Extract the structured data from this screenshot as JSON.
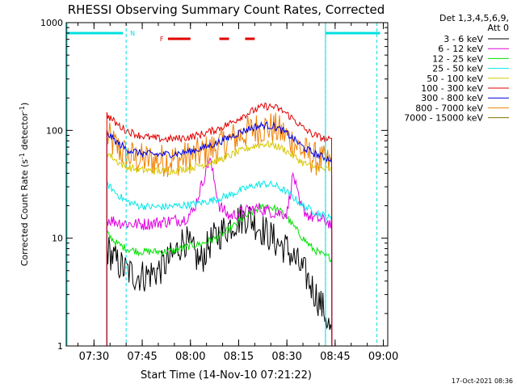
{
  "chart_data": {
    "type": "line",
    "title": "RHESSI Observing Summary Count Rates, Corrected",
    "xlabel": "Start Time (14-Nov-10 07:21:22)",
    "ylabel_main": "Corrected Count Rate (s",
    "ylabel_sup1": "-1",
    "ylabel_mid": " detector",
    "ylabel_sup2": "-1",
    "ylabel_end": ")",
    "yscale": "log",
    "ylim": [
      1,
      1000
    ],
    "xlim": [
      "07:21:22",
      "09:01:22"
    ],
    "x_ticks": [
      "07:30",
      "07:45",
      "08:00",
      "08:15",
      "08:30",
      "08:45",
      "09:00"
    ],
    "y_ticks": [
      "1",
      "10",
      "100",
      "1000"
    ],
    "legend_header": [
      "Det 1,3,4,5,6,9,",
      "Att 0"
    ],
    "footer": "17-Oct-2021 08:36",
    "flags": {
      "night_label": "N",
      "flare_label": "F",
      "night_color": "#00e0e0",
      "flare_color": "#e00000",
      "night_lines": [
        "07:40",
        "08:42",
        "08:58"
      ],
      "night_bars": [
        [
          "07:21:22",
          "07:39"
        ],
        [
          "08:42",
          "08:59"
        ]
      ],
      "flare_segments": [
        [
          "07:53",
          "08:00"
        ],
        [
          "08:09",
          "08:12"
        ],
        [
          "08:17",
          "08:20"
        ]
      ]
    },
    "data_start": "07:34",
    "data_end": "08:44",
    "series": [
      {
        "name": "3 - 6 keV",
        "color": "#000000",
        "x": [
          "07:34",
          "07:37",
          "07:40",
          "07:43",
          "07:46",
          "07:50",
          "07:55",
          "07:58",
          "08:00",
          "08:03",
          "08:06",
          "08:09",
          "08:12",
          "08:15",
          "08:18",
          "08:21",
          "08:24",
          "08:27",
          "08:30",
          "08:33",
          "08:36",
          "08:39",
          "08:42",
          "08:44"
        ],
        "y": [
          8,
          6,
          5,
          4.5,
          4.5,
          5,
          7,
          10,
          8,
          6,
          9,
          11,
          13,
          15,
          16,
          13,
          11,
          9,
          8,
          6,
          4.5,
          3,
          2,
          1.2
        ]
      },
      {
        "name": "6 - 12 keV",
        "color": "#e000e0",
        "x": [
          "07:34",
          "07:38",
          "07:42",
          "07:46",
          "07:50",
          "07:54",
          "07:58",
          "08:01",
          "08:03",
          "08:06",
          "08:09",
          "08:12",
          "08:15",
          "08:18",
          "08:21",
          "08:24",
          "08:27",
          "08:30",
          "08:32",
          "08:34",
          "08:37",
          "08:40",
          "08:43",
          "08:44"
        ],
        "y": [
          15,
          14,
          13.5,
          13.5,
          14,
          14.5,
          15,
          18,
          28,
          55,
          20,
          16,
          17,
          18,
          19,
          18,
          17,
          17,
          40,
          20,
          16,
          15,
          14,
          13
        ]
      },
      {
        "name": "12 - 25 keV",
        "color": "#00e000",
        "x": [
          "07:34",
          "07:37",
          "07:40",
          "07:44",
          "07:48",
          "07:52",
          "07:56",
          "08:00",
          "08:04",
          "08:08",
          "08:12",
          "08:16",
          "08:20",
          "08:23",
          "08:26",
          "08:29",
          "08:32",
          "08:35",
          "08:38",
          "08:41",
          "08:44"
        ],
        "y": [
          11,
          9,
          8,
          7.5,
          7.5,
          7.5,
          7.8,
          8.5,
          9,
          10,
          12,
          15,
          18,
          20,
          19,
          17,
          13,
          10,
          8,
          7,
          6.5
        ]
      },
      {
        "name": "25 - 50 keV",
        "color": "#00e8e8",
        "x": [
          "07:34",
          "07:37",
          "07:40",
          "07:44",
          "07:48",
          "07:52",
          "07:56",
          "08:00",
          "08:04",
          "08:08",
          "08:12",
          "08:16",
          "08:20",
          "08:23",
          "08:26",
          "08:29",
          "08:32",
          "08:35",
          "08:38",
          "08:41",
          "08:44"
        ],
        "y": [
          32,
          26,
          22,
          20,
          19.5,
          19.5,
          20,
          20.5,
          21.5,
          23,
          25,
          28,
          31,
          32,
          31,
          28,
          24,
          20,
          18,
          16.5,
          15
        ]
      },
      {
        "name": "50 - 100 keV",
        "color": "#d8c800",
        "x": [
          "07:34",
          "07:37",
          "07:40",
          "07:44",
          "07:48",
          "07:52",
          "07:56",
          "08:00",
          "08:04",
          "08:08",
          "08:12",
          "08:16",
          "08:20",
          "08:23",
          "08:26",
          "08:29",
          "08:32",
          "08:35",
          "08:38",
          "08:41",
          "08:44"
        ],
        "y": [
          63,
          52,
          46,
          43,
          42,
          42,
          43,
          45,
          48,
          52,
          58,
          65,
          72,
          75,
          73,
          67,
          58,
          50,
          46,
          44,
          43
        ]
      },
      {
        "name": "100 - 300 keV",
        "color": "#e00000",
        "x": [
          "07:34",
          "07:37",
          "07:40",
          "07:44",
          "07:48",
          "07:52",
          "07:56",
          "08:00",
          "08:04",
          "08:08",
          "08:12",
          "08:16",
          "08:20",
          "08:23",
          "08:26",
          "08:29",
          "08:32",
          "08:35",
          "08:38",
          "08:41",
          "08:44"
        ],
        "y": [
          140,
          115,
          100,
          90,
          85,
          83,
          84,
          87,
          93,
          102,
          115,
          135,
          155,
          168,
          165,
          150,
          128,
          105,
          92,
          85,
          80
        ]
      },
      {
        "name": "300 - 800 keV",
        "color": "#0000e0",
        "x": [
          "07:34",
          "07:37",
          "07:40",
          "07:44",
          "07:48",
          "07:52",
          "07:56",
          "08:00",
          "08:04",
          "08:08",
          "08:12",
          "08:16",
          "08:20",
          "08:23",
          "08:26",
          "08:29",
          "08:32",
          "08:35",
          "08:38",
          "08:41",
          "08:44"
        ],
        "y": [
          95,
          78,
          67,
          62,
          60,
          60,
          61,
          64,
          69,
          76,
          86,
          98,
          108,
          112,
          109,
          98,
          84,
          70,
          62,
          57,
          54
        ]
      },
      {
        "name": "800 - 7000 keV",
        "color": "#f08000",
        "x": [
          "07:34",
          "07:37",
          "07:40",
          "07:44",
          "07:48",
          "07:52",
          "07:56",
          "08:00",
          "08:04",
          "08:08",
          "08:12",
          "08:16",
          "08:20",
          "08:23",
          "08:26",
          "08:29",
          "08:32",
          "08:35",
          "08:38",
          "08:41",
          "08:44"
        ],
        "y": [
          88,
          70,
          59,
          54,
          53,
          53,
          54,
          57,
          62,
          70,
          80,
          92,
          103,
          107,
          104,
          93,
          78,
          64,
          56,
          51,
          48
        ]
      },
      {
        "name": "7000 - 15000 keV",
        "color": "#807000",
        "x": [
          "07:34",
          "07:37",
          "07:40",
          "07:43",
          "07:46",
          "07:50",
          "07:54",
          "07:58",
          "08:02",
          "08:06",
          "08:10",
          "08:14",
          "08:18",
          "08:21",
          "08:24",
          "08:27",
          "08:30",
          "08:33",
          "08:36",
          "08:39",
          "08:42",
          "08:44"
        ],
        "y": [
          9,
          6,
          4.5,
          3.5,
          3,
          2.7,
          2.7,
          2.8,
          3,
          3.5,
          5,
          8,
          12,
          16,
          17,
          15,
          12,
          8,
          6,
          4.5,
          3.5,
          3
        ]
      }
    ]
  }
}
